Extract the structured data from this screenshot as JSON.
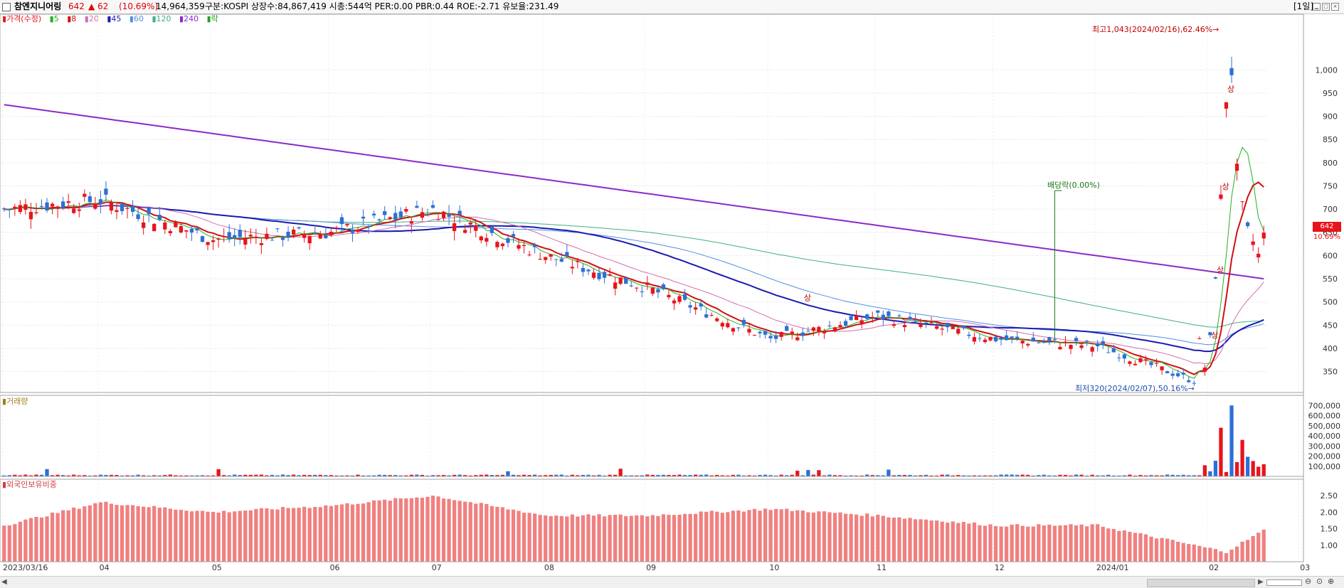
{
  "header": {
    "stock_name": "참엔지니어링",
    "price": "642",
    "change": "▲ 62",
    "change_pct": "(10.69%)",
    "volume": "14,964,359",
    "info": "구분:KOSPI  상장수:84,867,419  시총:544억  PER:0.00  PBR:0.44  ROE:-2.71  유보율:231.49",
    "period": "[1일]"
  },
  "legend": {
    "price_label": "가격(수정)",
    "ma5": "5",
    "ma8": "8",
    "ma20": "20",
    "ma45": "45",
    "ma60": "60",
    "ma120": "120",
    "ma240": "240",
    "rak": "락"
  },
  "colors": {
    "up": "#e8141c",
    "down": "#2d6fd6",
    "ma5": "#22b022",
    "ma8": "#d01010",
    "ma20": "#d070b0",
    "ma45": "#1a1ab0",
    "ma60": "#5090e0",
    "ma120": "#40b080",
    "ma240": "#8a2cc8",
    "foreign": "#f08080"
  },
  "annotations": {
    "high": "최고1,043(2024/02/16),62.46%→",
    "low": "최저320(2024/02/07),50.16%→",
    "dividend": "배당락(0.00%)",
    "limit_up": "상"
  },
  "price_tag": {
    "value": "642",
    "pct": "10.69%"
  },
  "panels": {
    "volume_label": "거래량",
    "foreign_label": "외국인보유비중"
  },
  "chart_data": [
    {
      "type": "candlestick",
      "title": "참엔지니어링",
      "y_ticks": [
        350,
        400,
        450,
        500,
        550,
        600,
        650,
        700,
        750,
        800,
        850,
        900,
        950,
        1000
      ],
      "y_tick_labels": [
        "350",
        "400",
        "450",
        "500",
        "550",
        "600",
        "650",
        "700",
        "750",
        "800",
        "850",
        "900",
        "950",
        "1,000"
      ],
      "ylim": [
        305,
        1120
      ],
      "x_tick_labels": [
        "2023/03/16",
        "04",
        "05",
        "06",
        "07",
        "08",
        "09",
        "10",
        "11",
        "12",
        "2024/01",
        "02",
        "03"
      ],
      "highest": {
        "value": 1043,
        "date": "2024/02/16"
      },
      "lowest": {
        "value": 320,
        "date": "2024/02/07"
      },
      "keypoints": [
        {
          "date": "2023/03/16",
          "close": 700
        },
        {
          "date": "2023/04",
          "close": 720
        },
        {
          "date": "2023/05",
          "close": 635
        },
        {
          "date": "2023/06",
          "close": 650
        },
        {
          "date": "2023/07",
          "close": 700
        },
        {
          "date": "2023/08",
          "close": 600
        },
        {
          "date": "2023/09",
          "close": 530
        },
        {
          "date": "2023/10",
          "close": 420
        },
        {
          "date": "2023/11",
          "close": 470
        },
        {
          "date": "2023/12",
          "close": 420
        },
        {
          "date": "2024/01",
          "close": 405
        },
        {
          "date": "2024/02/07",
          "close": 330
        },
        {
          "date": "2024/02/16",
          "close": 830
        },
        {
          "date": "2024/02/29",
          "close": 642
        }
      ],
      "ma240": {
        "start": 925,
        "end": 550
      }
    },
    {
      "type": "bar",
      "title": "거래량",
      "y_tick_labels": [
        "700,000",
        "600,000",
        "500,000",
        "400,000",
        "300,000",
        "200,000",
        "100,000"
      ],
      "ylim": [
        0,
        800000
      ],
      "spikes": [
        {
          "date": "2024/02/07",
          "value": 110000
        },
        {
          "date": "2024/02/13",
          "value": 480000
        },
        {
          "date": "2024/02/16",
          "value": 700000
        },
        {
          "date": "2024/02/20",
          "value": 360000
        },
        {
          "date": "2024/02/29",
          "value": 120000
        }
      ]
    },
    {
      "type": "bar",
      "title": "외국인보유비중",
      "y_tick_labels": [
        "2.50",
        "2.00",
        "1.50",
        "1.00"
      ],
      "ylim": [
        0.5,
        3.0
      ],
      "keypoints": [
        {
          "date": "2023/03/16",
          "value": 1.6
        },
        {
          "date": "2023/04",
          "value": 2.3
        },
        {
          "date": "2023/05",
          "value": 2.0
        },
        {
          "date": "2023/06",
          "value": 2.2
        },
        {
          "date": "2023/07",
          "value": 2.5
        },
        {
          "date": "2023/08",
          "value": 1.9
        },
        {
          "date": "2023/09",
          "value": 1.9
        },
        {
          "date": "2023/10",
          "value": 2.1
        },
        {
          "date": "2023/11",
          "value": 1.9
        },
        {
          "date": "2023/12",
          "value": 1.6
        },
        {
          "date": "2024/01",
          "value": 1.6
        },
        {
          "date": "2024/02/07",
          "value": 1.0
        },
        {
          "date": "2024/02/16",
          "value": 0.8
        },
        {
          "date": "2024/02/29",
          "value": 1.45
        }
      ]
    }
  ]
}
